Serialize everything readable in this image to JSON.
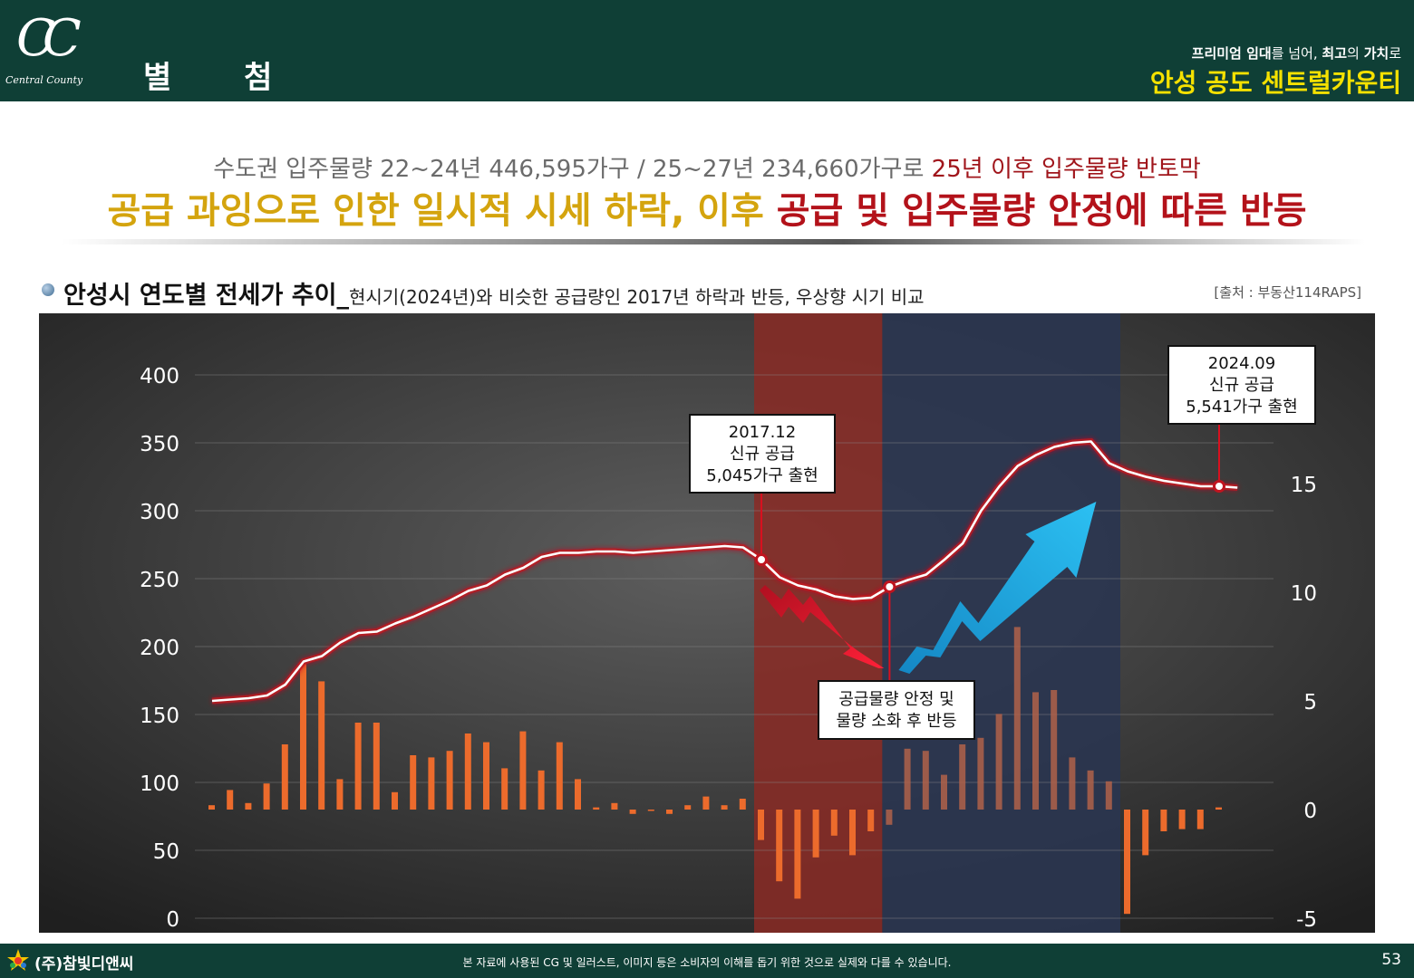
{
  "header": {
    "logo_mark": "CC",
    "logo_text": "Central County",
    "page_title": "별 첨",
    "tagline_pre1": "프리미엄 임대",
    "tagline_mid1": "를 넘어, ",
    "tagline_pre2": "최고",
    "tagline_mid2": "의 ",
    "tagline_pre3": "가치",
    "tagline_end": "로",
    "brand": "안성 공도 센트럴카운티"
  },
  "headline": {
    "line1_gray": "수도권 입주물량 22~24년 446,595가구 / 25~27년 234,660가구로 ",
    "line1_red": "25년 이후 입주물량 반토막",
    "line2_gold": "공급 과잉으로 인한 일시적 시세 하락, 이후 ",
    "line2_red": "공급 및 입주물량 안정에 따른 반등"
  },
  "section": {
    "title": "안성시 연도별 전세가 추이_",
    "subtitle": "현시기(2024년)와 비슷한 공급량인 2017년 하락과 반등, 우상향 시기 비교",
    "source": "[출처 : 부동산114RAPS]"
  },
  "colors": {
    "header_bg": "#0f3f36",
    "brand_yellow": "#f5e100",
    "headline_gold": "#d4a40e",
    "headline_red": "#b3121a",
    "bar_orange": "#ec6b2c",
    "highlight_red": "#8a2a24",
    "highlight_blue": "#2a3550",
    "down_arrow": "#d9142a",
    "up_arrow": "#1ea4e0"
  },
  "chart_data": {
    "type": "bar+line",
    "left_axis": {
      "ylim": [
        0,
        400
      ],
      "ticks": [
        "400",
        "350",
        "300",
        "250",
        "200",
        "150",
        "100",
        "50",
        "0"
      ]
    },
    "right_axis": {
      "ylim": [
        -5,
        15
      ],
      "ticks": [
        "15",
        "10",
        "5",
        "0",
        "-5"
      ]
    },
    "line_series": {
      "axis": "left",
      "values": [
        160,
        161,
        162,
        164,
        172,
        189,
        193,
        203,
        210,
        211,
        217,
        222,
        228,
        234,
        241,
        245,
        253,
        258,
        266,
        269,
        269,
        270,
        270,
        269,
        270,
        271,
        272,
        273,
        274,
        273,
        264,
        251,
        245,
        242,
        237,
        235,
        236,
        244,
        249,
        253,
        264,
        276,
        300,
        318,
        333,
        341,
        347,
        350,
        351,
        335,
        329,
        325,
        322,
        320,
        318,
        318,
        317
      ]
    },
    "bar_series": {
      "axis": "right",
      "values": [
        0.2,
        0.9,
        0.3,
        1.2,
        3.0,
        6.7,
        5.9,
        1.4,
        4.0,
        4.0,
        0.8,
        2.5,
        2.4,
        2.7,
        3.5,
        3.1,
        1.9,
        3.6,
        1.8,
        3.1,
        1.4,
        0.1,
        0.3,
        -0.2,
        0.0,
        -0.2,
        0.2,
        0.6,
        0.2,
        0.5,
        -1.4,
        -3.3,
        -4.1,
        -2.2,
        -1.2,
        -2.1,
        -1.0,
        -0.7,
        2.8,
        2.7,
        1.6,
        3.0,
        3.3,
        4.4,
        8.4,
        5.4,
        5.5,
        2.4,
        1.8,
        1.3,
        -4.8,
        -2.1,
        -1.0,
        -0.9,
        -0.9,
        0.1
      ]
    },
    "highlight_regions": [
      {
        "name": "decline",
        "from_index": 30,
        "to_index": 37
      },
      {
        "name": "rebound",
        "from_index": 37,
        "to_index": 50
      }
    ],
    "annotations": [
      {
        "index": 30,
        "lines": [
          "2017.12",
          "신규 공급",
          "5,045가구 출현"
        ]
      },
      {
        "index": 37,
        "lines": [
          "공급물량 안정 및",
          "물량 소화 후 반등"
        ]
      },
      {
        "index": 55,
        "lines": [
          "2024.09",
          "신규 공급",
          "5,541가구 출현"
        ]
      }
    ]
  },
  "footer": {
    "company": "(주)참빛디앤씨",
    "note": "본 자료에 사용된 CG 및 일러스트, 이미지 등은 소비자의 이해를 돕기 위한 것으로 실제와 다를 수 있습니다.",
    "page_number": "53"
  }
}
